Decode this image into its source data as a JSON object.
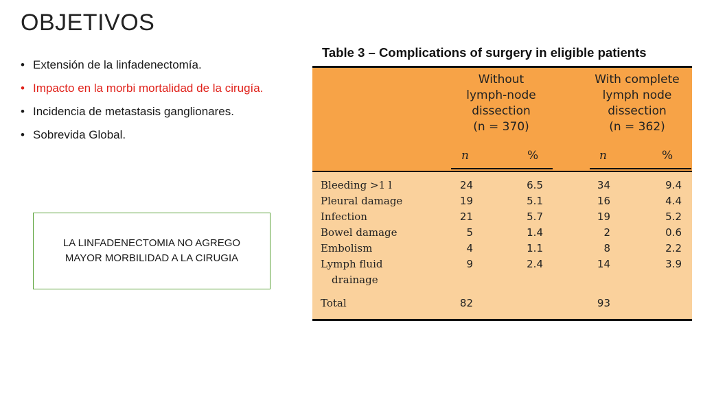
{
  "slide": {
    "title": "OBJETIVOS",
    "bullets": [
      {
        "text": "Extensión de la linfadenectomía.",
        "color": "#1a1a1a"
      },
      {
        "text": "Impacto en la morbi mortalidad de la cirugía.",
        "color": "#e0211a"
      },
      {
        "text": "Incidencia de metastasis ganglionares.",
        "color": "#1a1a1a"
      },
      {
        "text": "Sobrevida Global.",
        "color": "#1a1a1a"
      }
    ],
    "note": {
      "line1": "LA LINFADENECTOMIA NO AGREGO",
      "line2": "MAYOR MORBILIDAD A LA CIRUGIA",
      "border_color": "#5ca33a"
    }
  },
  "table": {
    "title": "Table 3 – Complications of surgery in eligible patients",
    "header_color": "#f7a347",
    "body_color": "#fad19c",
    "groups": [
      {
        "lines": [
          "Without",
          "lymph-node",
          "dissection"
        ],
        "n_label": "n = 370"
      },
      {
        "lines": [
          "With complete",
          "lymph node",
          "dissection"
        ],
        "n_label": "n = 362"
      }
    ],
    "subheaders": [
      "n",
      "%",
      "n",
      "%"
    ],
    "rows": [
      {
        "label": "Bleeding >1 l",
        "label2": "",
        "n1": "24",
        "p1": "6.5",
        "n2": "34",
        "p2": "9.4"
      },
      {
        "label": "Pleural damage",
        "label2": "",
        "n1": "19",
        "p1": "5.1",
        "n2": "16",
        "p2": "4.4"
      },
      {
        "label": "Infection",
        "label2": "",
        "n1": "21",
        "p1": "5.7",
        "n2": "19",
        "p2": "5.2"
      },
      {
        "label": "Bowel damage",
        "label2": "",
        "n1": "5",
        "p1": "1.4",
        "n2": "2",
        "p2": "0.6"
      },
      {
        "label": "Embolism",
        "label2": "",
        "n1": "4",
        "p1": "1.1",
        "n2": "8",
        "p2": "2.2"
      },
      {
        "label": "Lymph fluid",
        "label2": "drainage",
        "n1": "9",
        "p1": "2.4",
        "n2": "14",
        "p2": "3.9"
      }
    ],
    "total": {
      "label": "Total",
      "n1": "82",
      "n2": "93"
    }
  }
}
